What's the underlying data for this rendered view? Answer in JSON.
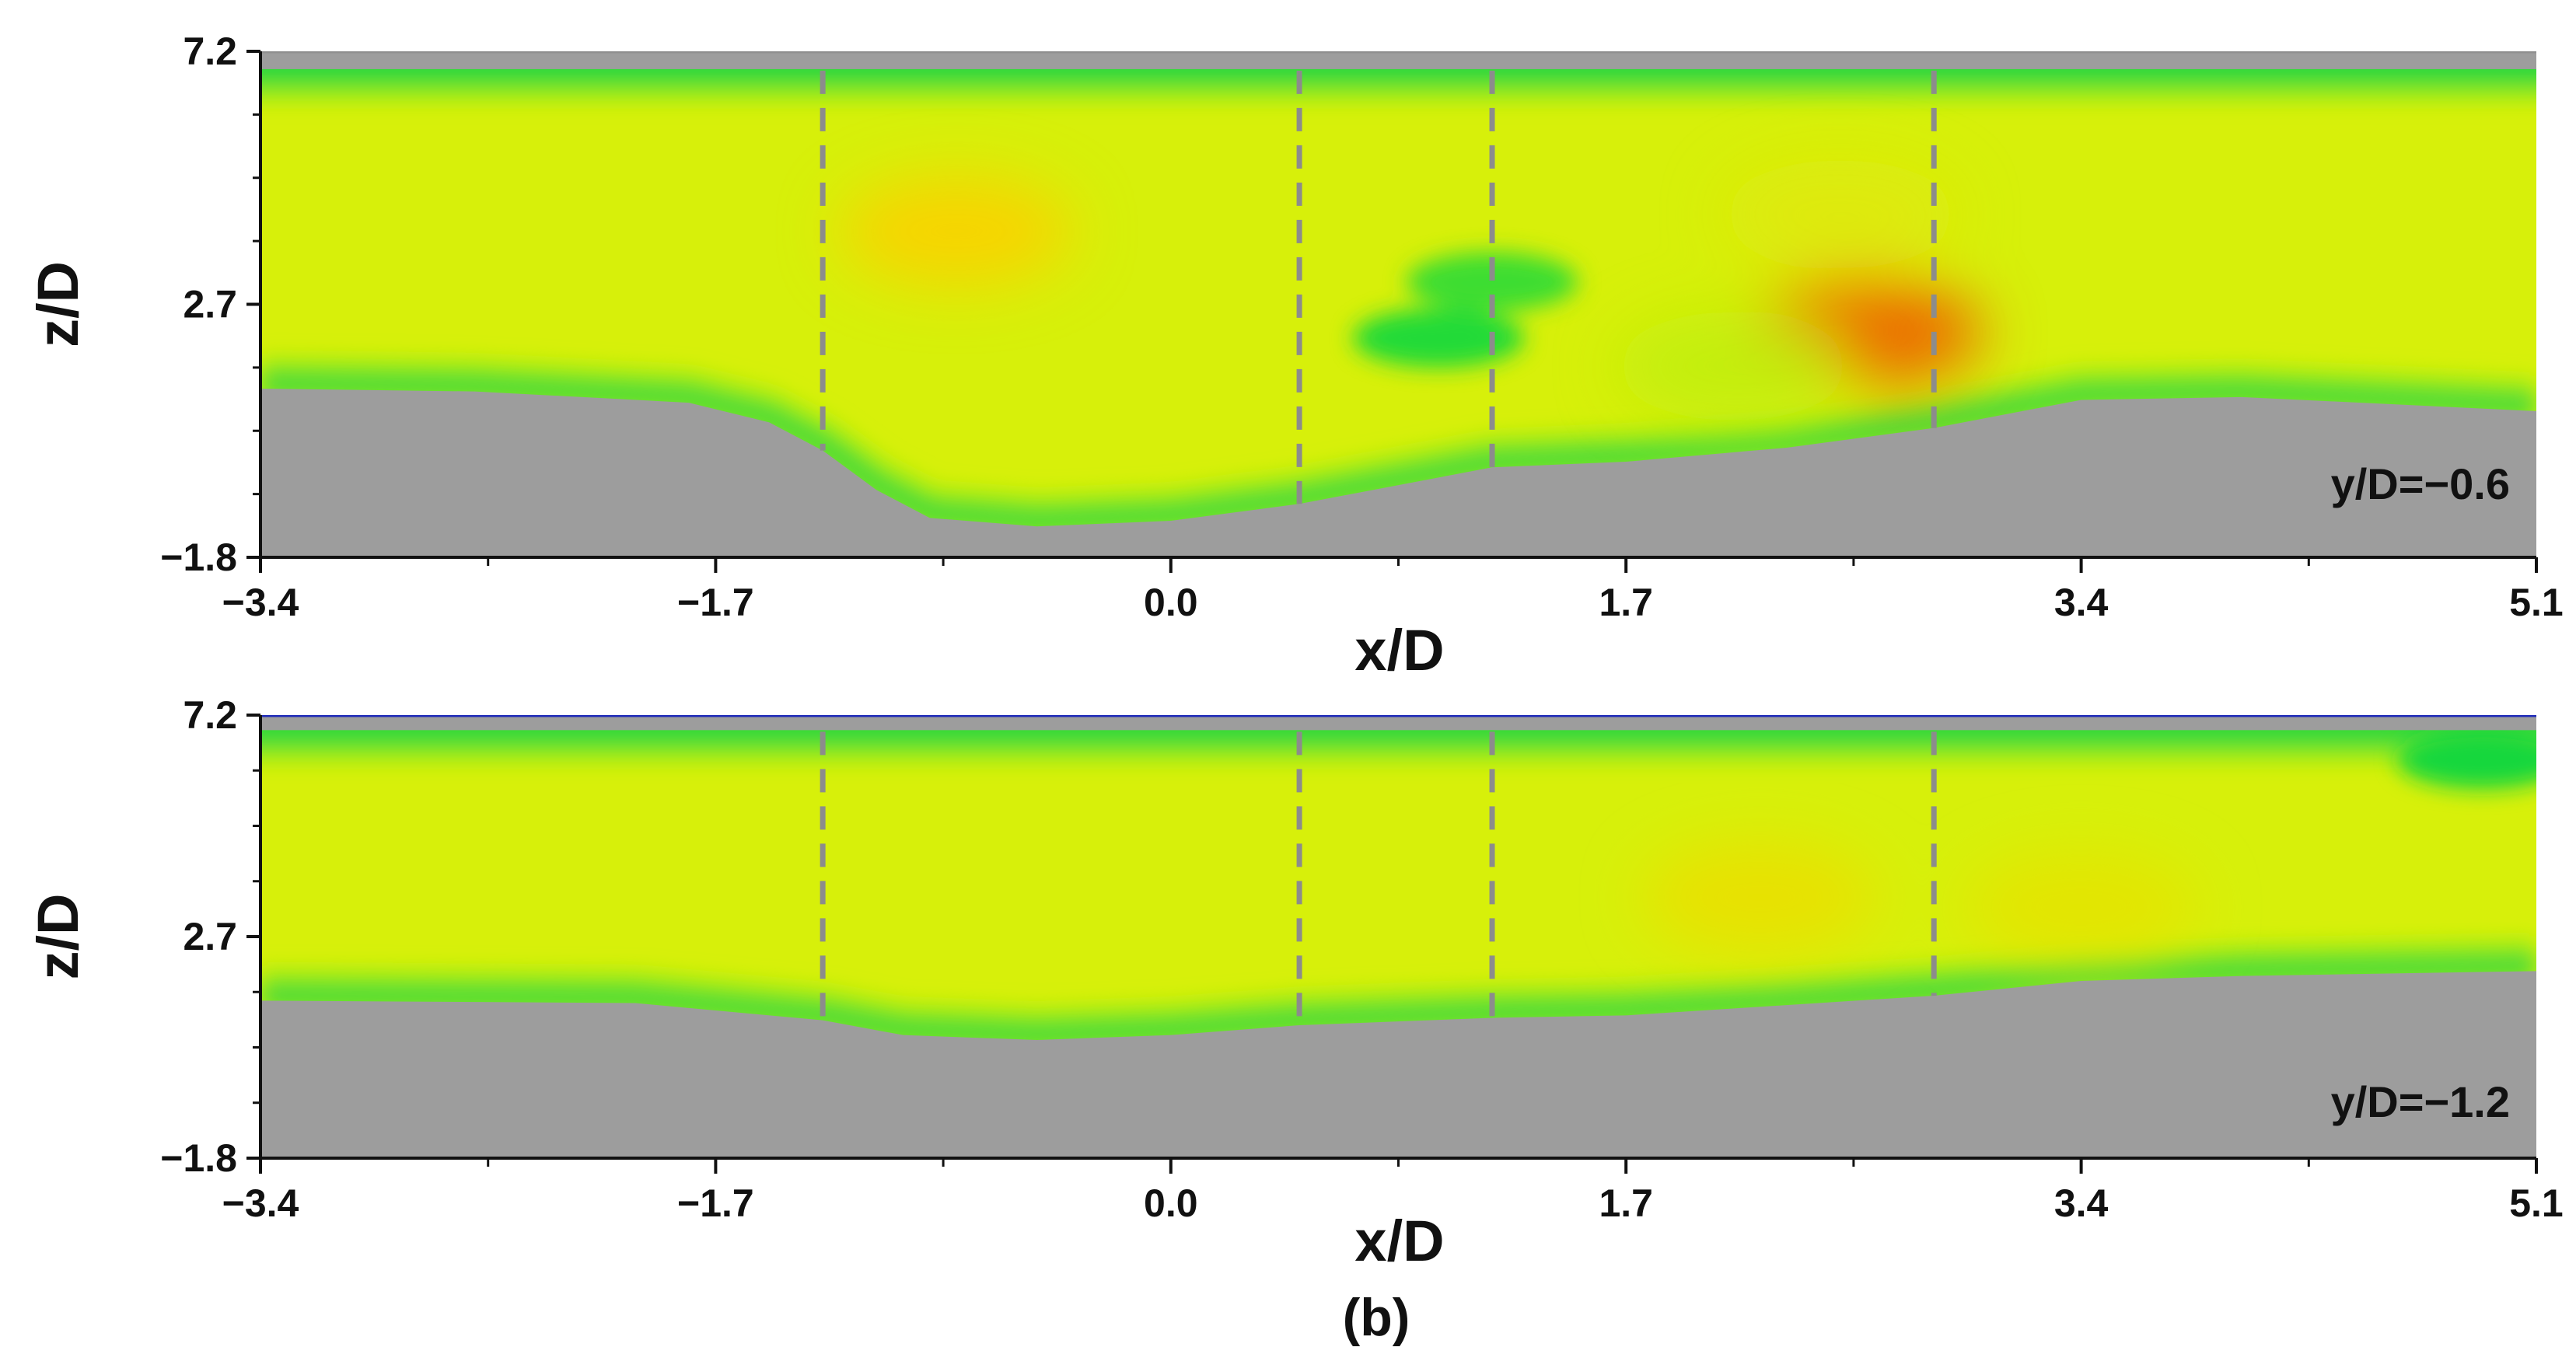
{
  "figure_label": "(b)",
  "chart_data": [
    {
      "type": "heatmap",
      "panel_label": "y/D=−0.6",
      "xlabel": "x/D",
      "ylabel": "z/D",
      "xlim": [
        -3.4,
        5.1
      ],
      "ylim": [
        -1.8,
        7.2
      ],
      "x_ticks": [
        "−3.4",
        "−1.7",
        "0.0",
        "1.7",
        "3.4",
        "5.1"
      ],
      "y_ticks": [
        "7.2",
        "2.7",
        "−1.8"
      ],
      "x_tick_values": [
        -3.4,
        -1.7,
        0.0,
        1.7,
        3.4,
        5.1
      ],
      "y_tick_values": [
        7.2,
        2.7,
        -1.8
      ],
      "dashed_lines_x": [
        -1.3,
        0.48,
        1.2,
        2.85
      ],
      "bed_profile": [
        [
          -3.4,
          1.2
        ],
        [
          -2.6,
          1.15
        ],
        [
          -1.8,
          0.95
        ],
        [
          -1.5,
          0.6
        ],
        [
          -1.3,
          0.1
        ],
        [
          -1.1,
          -0.6
        ],
        [
          -0.9,
          -1.1
        ],
        [
          -0.5,
          -1.25
        ],
        [
          0.0,
          -1.15
        ],
        [
          0.48,
          -0.85
        ],
        [
          1.2,
          -0.2
        ],
        [
          1.7,
          -0.1
        ],
        [
          2.3,
          0.15
        ],
        [
          2.85,
          0.5
        ],
        [
          3.4,
          1.0
        ],
        [
          4.0,
          1.05
        ],
        [
          5.1,
          0.8
        ]
      ],
      "water_surface_z": 6.8,
      "hotspots": [
        {
          "x": -0.8,
          "z": 4.0,
          "level": 0.68
        },
        {
          "x": 2.6,
          "z": 2.2,
          "level": 0.95
        },
        {
          "x": 2.5,
          "z": 4.3,
          "level": 0.58
        },
        {
          "x": 2.1,
          "z": 1.6,
          "level": 0.52
        }
      ],
      "lowzones": [
        {
          "x": 1.0,
          "z": 2.1,
          "level": 0.32
        },
        {
          "x": 1.2,
          "z": 3.1,
          "level": 0.35
        }
      ],
      "colors": {
        "bed": "#9d9d9d",
        "frame_top": "#8f8f8f",
        "dashed": "#8c8c8c"
      }
    },
    {
      "type": "heatmap",
      "panel_label": "y/D=−1.2",
      "xlabel": "x/D",
      "ylabel": "z/D",
      "xlim": [
        -3.4,
        5.1
      ],
      "ylim": [
        -1.8,
        7.2
      ],
      "x_ticks": [
        "−3.4",
        "−1.7",
        "0.0",
        "1.7",
        "3.4",
        "5.1"
      ],
      "y_ticks": [
        "7.2",
        "2.7",
        "−1.8"
      ],
      "x_tick_values": [
        -3.4,
        -1.7,
        0.0,
        1.7,
        3.4,
        5.1
      ],
      "y_tick_values": [
        7.2,
        2.7,
        -1.8
      ],
      "dashed_lines_x": [
        -1.3,
        0.48,
        1.2,
        2.85
      ],
      "bed_profile": [
        [
          -3.4,
          1.4
        ],
        [
          -2.0,
          1.35
        ],
        [
          -1.3,
          1.0
        ],
        [
          -1.0,
          0.7
        ],
        [
          -0.5,
          0.6
        ],
        [
          0.0,
          0.7
        ],
        [
          0.48,
          0.9
        ],
        [
          1.2,
          1.05
        ],
        [
          1.7,
          1.1
        ],
        [
          2.85,
          1.5
        ],
        [
          3.4,
          1.8
        ],
        [
          4.0,
          1.9
        ],
        [
          5.1,
          2.0
        ]
      ],
      "water_surface_z": 6.8,
      "hotspots": [
        {
          "x": 2.2,
          "z": 3.5,
          "level": 0.62
        },
        {
          "x": 3.4,
          "z": 3.3,
          "level": 0.6
        }
      ],
      "lowzones": [
        {
          "x": 4.9,
          "z": 6.3,
          "level": 0.3
        }
      ],
      "colors": {
        "bed": "#9d9d9d",
        "frame_top": "#1e2ab8",
        "dashed": "#8c8c8c"
      }
    }
  ]
}
